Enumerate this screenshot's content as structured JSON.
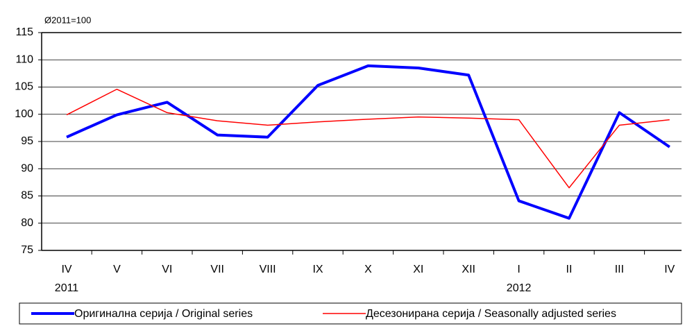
{
  "chart_data": {
    "type": "line",
    "unit_label": "Ø2011=100",
    "categories": [
      "IV",
      "V",
      "VI",
      "VII",
      "VIII",
      "IX",
      "X",
      "XI",
      "XII",
      "I",
      "II",
      "III",
      "IV"
    ],
    "category_years": [
      "2011",
      null,
      null,
      null,
      null,
      null,
      null,
      null,
      null,
      "2012",
      null,
      null,
      null
    ],
    "series": [
      {
        "name": "Оригинална серија / Original series",
        "color": "#0000ff",
        "width": 4,
        "values": [
          95.8,
          99.9,
          102.2,
          96.2,
          95.8,
          105.3,
          108.9,
          108.5,
          107.2,
          84.1,
          80.9,
          100.3,
          94.0
        ]
      },
      {
        "name": "Десезонирана серија / Seasonally adjusted series",
        "color": "#ff0000",
        "width": 1.5,
        "values": [
          99.9,
          104.6,
          100.3,
          98.8,
          98.0,
          98.6,
          99.1,
          99.5,
          99.3,
          99.0,
          86.5,
          98.0,
          99.0
        ]
      }
    ],
    "ylim": [
      75,
      115
    ],
    "yticks": [
      75,
      80,
      85,
      90,
      95,
      100,
      105,
      110,
      115
    ],
    "grid": true
  }
}
